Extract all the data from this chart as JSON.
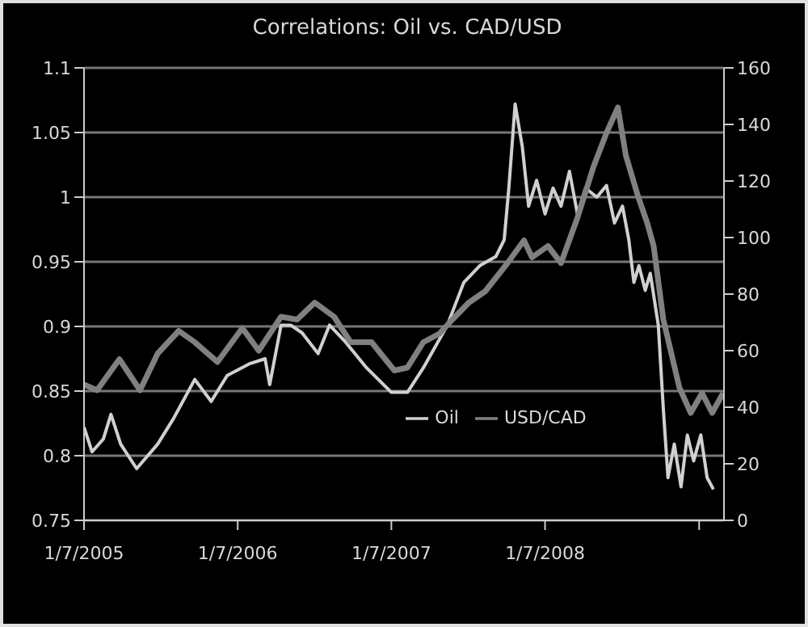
{
  "chart_data": {
    "type": "line",
    "title": "Correlations: Oil vs. CAD/USD",
    "xlim": [
      "2005-01-07",
      "2009-03-07"
    ],
    "xticks": [
      {
        "value": "2005-01-07",
        "label": "1/7/2005"
      },
      {
        "value": "2006-01-07",
        "label": "1/7/2006"
      },
      {
        "value": "2007-01-07",
        "label": "1/7/2007"
      },
      {
        "value": "2008-01-07",
        "label": "1/7/2008"
      },
      {
        "value": "2009-01-07",
        "label": null
      }
    ],
    "ylim": [
      0.75,
      1.1
    ],
    "yticks": [
      0.75,
      0.8,
      0.85,
      0.9,
      0.95,
      1,
      1.05,
      1.1
    ],
    "y2lim": [
      0,
      160
    ],
    "y2ticks": [
      0,
      20,
      40,
      60,
      80,
      100,
      120,
      140,
      160
    ],
    "grid": "y",
    "legend": "bottom right",
    "series": [
      {
        "name": "Oil",
        "color": "#d0d0d0",
        "x": [
          "2005-01-07",
          "2005-01-26",
          "2005-02-22",
          "2005-03-12",
          "2005-04-04",
          "2005-05-12",
          "2005-07-01",
          "2005-08-08",
          "2005-09-27",
          "2005-11-05",
          "2005-12-13",
          "2006-02-03",
          "2006-03-13",
          "2006-03-24",
          "2006-04-20",
          "2006-05-13",
          "2006-06-09",
          "2006-07-17",
          "2006-08-13",
          "2006-09-20",
          "2006-11-09",
          "2007-01-07",
          "2007-02-14",
          "2007-03-24",
          "2007-05-20",
          "2007-06-28",
          "2007-08-05",
          "2007-09-12",
          "2007-10-02",
          "2007-10-13",
          "2007-10-28",
          "2007-11-14",
          "2007-11-29",
          "2007-12-18",
          "2008-01-07",
          "2008-01-26",
          "2008-02-14",
          "2008-03-05",
          "2008-03-24",
          "2008-04-12",
          "2008-05-09",
          "2008-06-01",
          "2008-06-20",
          "2008-07-09",
          "2008-07-24",
          "2008-08-05",
          "2008-08-17",
          "2008-09-01",
          "2008-09-13",
          "2008-10-02",
          "2008-10-14",
          "2008-10-25",
          "2008-11-09",
          "2008-11-25",
          "2008-12-10",
          "2008-12-25",
          "2009-01-11",
          "2009-01-26",
          "2009-02-10"
        ],
        "values": [
          0.822,
          0.803,
          0.813,
          0.832,
          0.809,
          0.79,
          0.809,
          0.829,
          0.859,
          0.842,
          0.862,
          0.871,
          0.875,
          0.855,
          0.901,
          0.901,
          0.895,
          0.879,
          0.901,
          0.888,
          0.868,
          0.849,
          0.849,
          0.868,
          0.901,
          0.934,
          0.947,
          0.954,
          0.967,
          1.007,
          1.072,
          1.039,
          0.993,
          1.013,
          0.987,
          1.007,
          0.993,
          1.02,
          0.987,
          1.007,
          1.0,
          1.009,
          0.98,
          0.993,
          0.967,
          0.934,
          0.947,
          0.928,
          0.941,
          0.901,
          0.836,
          0.783,
          0.809,
          0.776,
          0.816,
          0.796,
          0.816,
          0.783,
          0.774
        ]
      },
      {
        "name": "USD/CAD",
        "color": "#808080",
        "axis": "y2",
        "x": [
          "2005-01-07",
          "2005-02-07",
          "2005-04-01",
          "2005-05-20",
          "2005-07-01",
          "2005-08-20",
          "2005-09-27",
          "2005-11-20",
          "2006-01-18",
          "2006-02-26",
          "2006-04-20",
          "2006-05-28",
          "2006-07-09",
          "2006-08-24",
          "2006-10-02",
          "2006-11-21",
          "2007-01-14",
          "2007-02-14",
          "2007-03-24",
          "2007-05-01",
          "2007-06-01",
          "2007-07-10",
          "2007-08-18",
          "2007-10-10",
          "2007-11-18",
          "2007-12-07",
          "2008-01-14",
          "2008-02-14",
          "2008-03-24",
          "2008-05-01",
          "2008-06-01",
          "2008-06-28",
          "2008-07-17",
          "2008-08-14",
          "2008-09-06",
          "2008-09-21",
          "2008-10-14",
          "2008-11-21",
          "2008-12-18",
          "2009-01-14",
          "2009-02-07",
          "2009-03-05"
        ],
        "values": [
          48,
          46,
          57,
          46,
          59,
          67,
          63,
          56,
          68,
          60,
          72,
          71,
          77,
          72,
          63,
          63,
          53,
          54,
          63,
          66,
          71,
          77,
          81,
          91,
          99,
          93,
          97,
          91,
          107,
          125,
          137,
          146,
          129,
          115,
          105,
          97,
          71,
          47,
          38,
          45,
          38,
          45
        ]
      }
    ]
  }
}
